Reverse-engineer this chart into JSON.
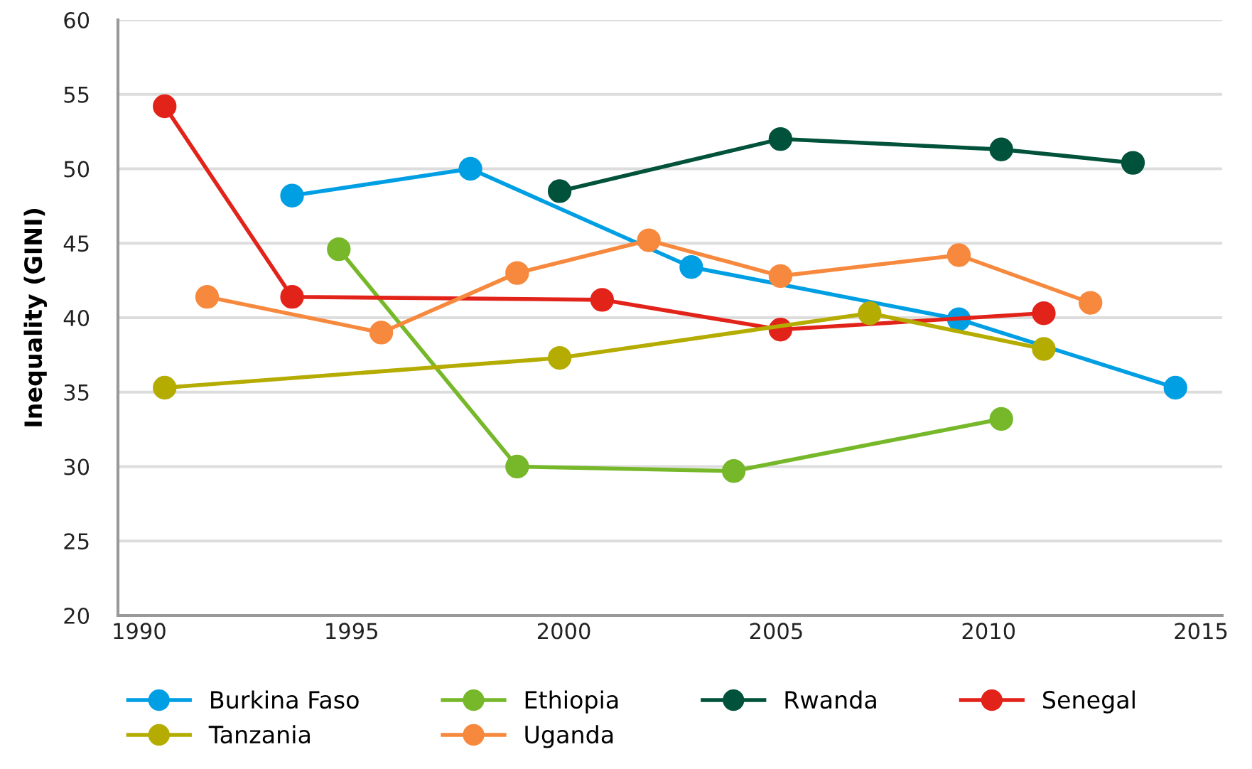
{
  "chart_data": {
    "type": "line",
    "ylabel": "Inequality (GINI)",
    "xlim": [
      1989.5,
      2015.5
    ],
    "xticks": [
      1990,
      1995,
      2000,
      2005,
      2010,
      2015
    ],
    "ylim": [
      20,
      60
    ],
    "yticks": [
      20,
      25,
      30,
      35,
      40,
      45,
      50,
      55,
      60
    ],
    "grid": "y",
    "legend": "bottom",
    "marker": "circle",
    "line_style": "solid",
    "series": [
      {
        "name": "Burkina Faso",
        "color": "#009fe3",
        "x": [
          1993.6,
          1997.8,
          2003.0,
          2009.3,
          2014.4
        ],
        "values": [
          48.2,
          50.0,
          43.4,
          39.9,
          35.3
        ]
      },
      {
        "name": "Ethiopia",
        "color": "#76b82a",
        "x": [
          1994.7,
          1998.9,
          2004.0,
          2010.3
        ],
        "values": [
          44.6,
          30.0,
          29.7,
          33.2
        ]
      },
      {
        "name": "Rwanda",
        "color": "#00523b",
        "x": [
          1999.9,
          2005.1,
          2010.3,
          2013.4
        ],
        "values": [
          48.5,
          52.0,
          51.3,
          50.4
        ]
      },
      {
        "name": "Senegal",
        "color": "#e2231a",
        "x": [
          1990.6,
          1993.6,
          2000.9,
          2005.1,
          2011.3
        ],
        "values": [
          54.2,
          41.4,
          41.2,
          39.2,
          40.3
        ]
      },
      {
        "name": "Tanzania",
        "color": "#b5ac02",
        "x": [
          1990.6,
          1999.9,
          2007.2,
          2011.3
        ],
        "values": [
          35.3,
          37.3,
          40.3,
          37.9
        ]
      },
      {
        "name": "Uganda",
        "color": "#f6893d",
        "x": [
          1991.6,
          1995.7,
          1998.9,
          2002.0,
          2005.1,
          2009.3,
          2012.4
        ],
        "values": [
          41.4,
          39.0,
          43.0,
          45.2,
          42.8,
          44.2,
          41.0
        ]
      }
    ]
  }
}
